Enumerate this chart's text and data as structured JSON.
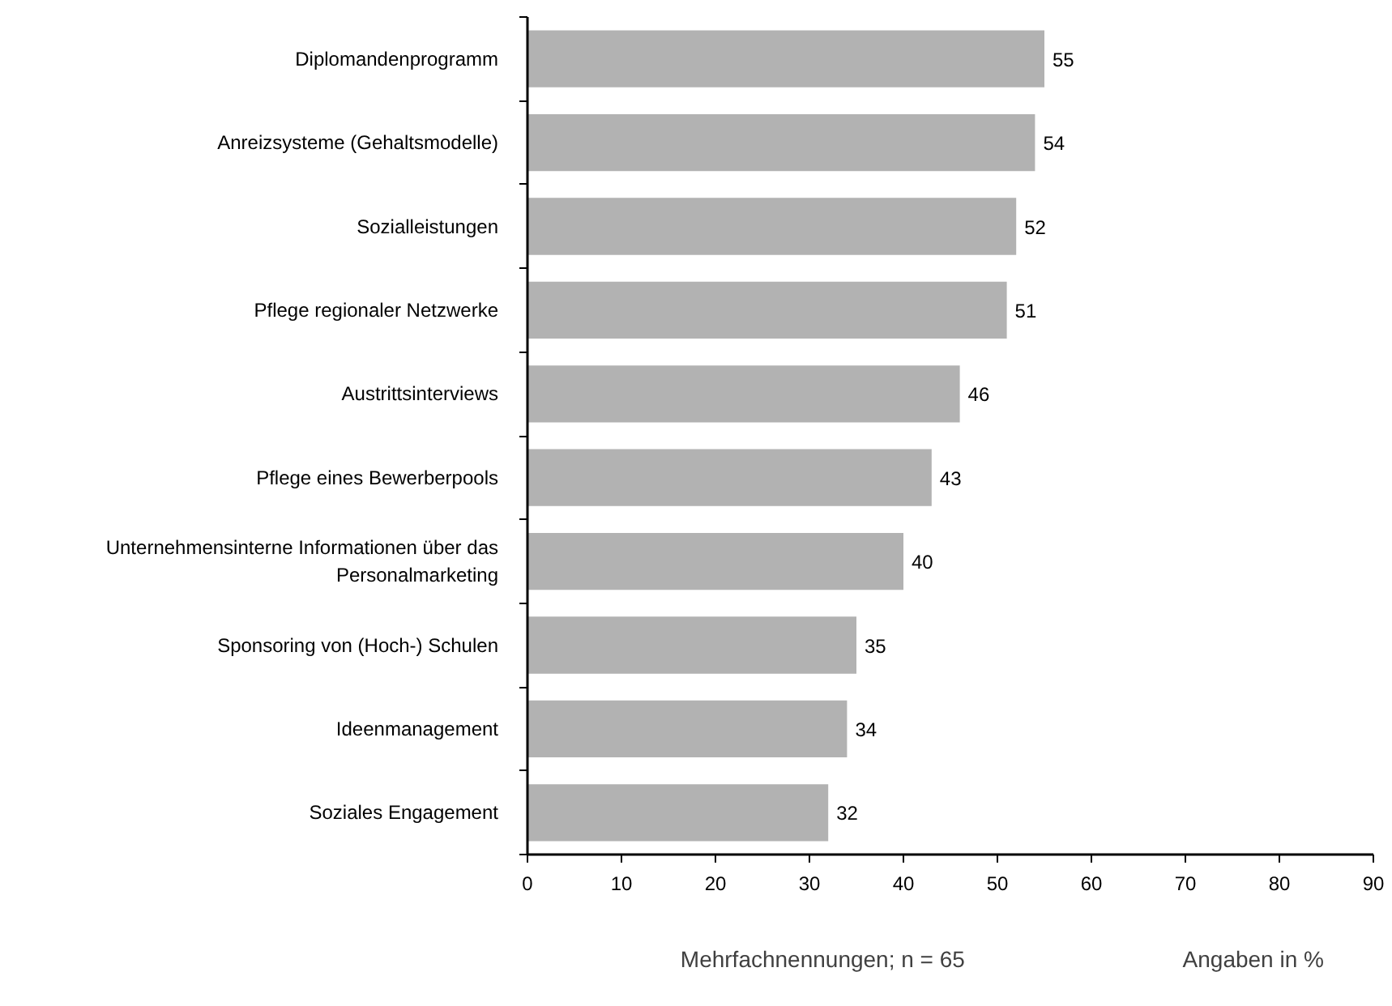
{
  "chart_data": {
    "type": "bar",
    "orientation": "horizontal",
    "categories": [
      "Diplomandenprogramm",
      "Anreizsysteme (Gehaltsmodelle)",
      "Sozialleistungen",
      "Pflege regionaler Netzwerke",
      "Austrittsinterviews",
      "Pflege eines Bewerberpools",
      "Unternehmensinterne Informationen über das Personalmarketing",
      "Sponsoring von (Hoch-) Schulen",
      "Ideenmanagement",
      "Soziales Engagement"
    ],
    "values": [
      55,
      54,
      52,
      51,
      46,
      43,
      40,
      35,
      34,
      32
    ],
    "color": "#b2b2b2",
    "xlim": [
      0,
      90
    ],
    "xticks": [
      0,
      10,
      20,
      30,
      40,
      50,
      60,
      70,
      80,
      90
    ],
    "data_labels": true,
    "annotations": [
      "Mehrfachnennungen; n = 65",
      "Angaben in %"
    ]
  }
}
